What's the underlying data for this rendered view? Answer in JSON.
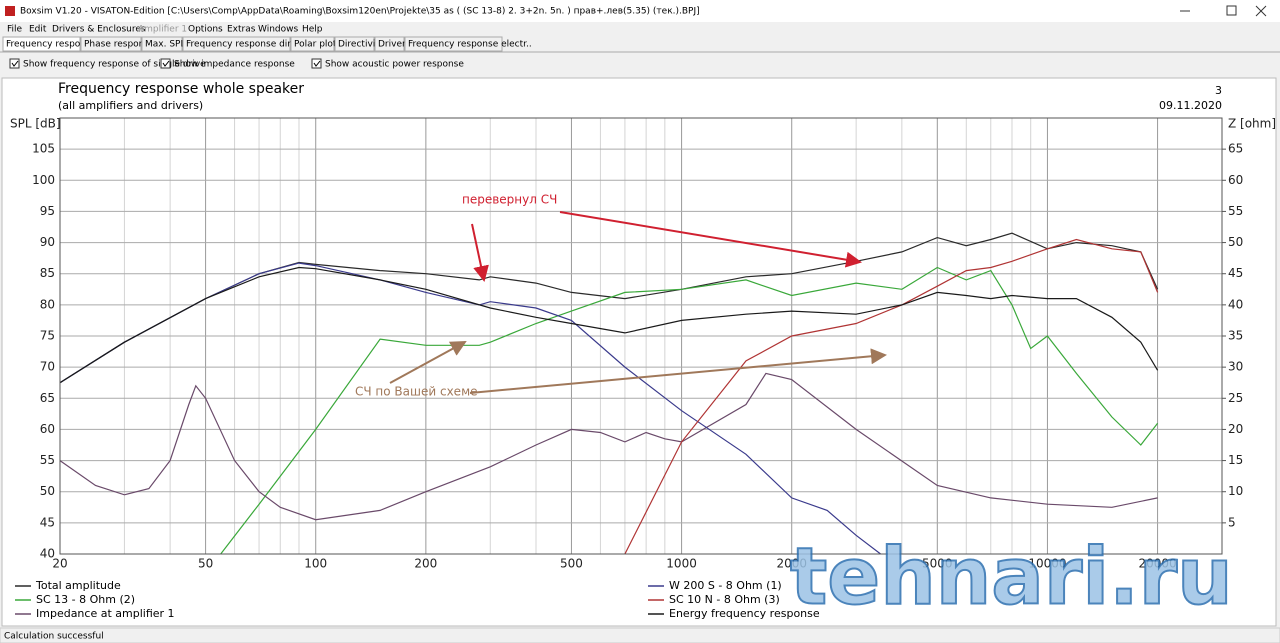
{
  "window": {
    "title": "Boxsim V1.20 - VISATON-Edition [C:\\Users\\Comp\\AppData\\Roaming\\Boxsim120en\\Projekte\\35 as (  (SC 13-8)  2. 3+2n. 5n. )  прав+.лев(5.35) (тек.).BPJ]"
  },
  "menu": [
    "File",
    "Edit",
    "Drivers & Enclosures",
    "Amplifier 1",
    "Options",
    "Extras",
    "Windows",
    "Help"
  ],
  "tabs": [
    "Frequency response",
    "Phase response",
    "Max. SPL",
    "Frequency response directions",
    "Polar plots",
    "Directivity",
    "Driver",
    "Frequency response electr.."
  ],
  "options": [
    "Show frequency response of single drive",
    "Show impedance response",
    "Show acoustic power response"
  ],
  "chart_data": {
    "type": "line",
    "title": "Frequency response whole speaker",
    "subtitle": "(all amplifiers and drivers)",
    "page_number": "3",
    "date": "09.11.2020",
    "y_label": "SPL [dB]",
    "y2_label": "Z [ohm]",
    "log_x": true,
    "grid": true,
    "xlim": [
      20,
      30000
    ],
    "xticks": [
      20,
      50,
      100,
      200,
      500,
      1000,
      2000,
      5000,
      10000,
      20000
    ],
    "x_minor_grid": [
      30,
      40,
      60,
      70,
      80,
      90,
      300,
      400,
      600,
      700,
      800,
      900,
      3000,
      4000,
      6000,
      7000,
      8000,
      9000
    ],
    "ylim": [
      40,
      110
    ],
    "yticks": [
      40,
      45,
      50,
      55,
      60,
      65,
      70,
      75,
      80,
      85,
      90,
      95,
      100,
      105
    ],
    "y2lim": [
      0,
      70
    ],
    "y2ticks": [
      5,
      10,
      15,
      20,
      25,
      30,
      35,
      40,
      45,
      50,
      55,
      60,
      65
    ],
    "series": [
      {
        "name": "Total amplitude",
        "color": "#2a2a2a",
        "x": [
          20,
          30,
          50,
          70,
          90,
          100,
          150,
          200,
          280,
          300,
          400,
          500,
          700,
          1000,
          1500,
          2000,
          3000,
          4000,
          5000,
          6000,
          7000,
          8000,
          10000,
          12000,
          15000,
          18000,
          20000
        ],
        "values": [
          67.5,
          74,
          81,
          85,
          86.8,
          86.5,
          85.5,
          85,
          84,
          84.5,
          83.5,
          82,
          81,
          82.5,
          84.5,
          85,
          87,
          88.5,
          90.8,
          89.5,
          90.5,
          91.5,
          89,
          90,
          89.5,
          88.5,
          82.5
        ]
      },
      {
        "name": "SC 13 - 8 Ohm (2)",
        "color": "#3aa83a",
        "x": [
          55,
          70,
          100,
          150,
          200,
          280,
          300,
          400,
          500,
          700,
          1000,
          1500,
          2000,
          3000,
          4000,
          5000,
          6000,
          7000,
          8000,
          9000,
          10000,
          12000,
          15000,
          18000,
          20000
        ],
        "values": [
          40,
          48,
          60,
          74.5,
          73.5,
          73.5,
          74,
          77,
          79,
          82,
          82.5,
          84,
          81.5,
          83.5,
          82.5,
          86,
          84,
          85.5,
          80,
          73,
          75,
          69,
          62,
          57.5,
          61
        ]
      },
      {
        "name": "Impedance at amplifier 1",
        "color": "#6a4a6a",
        "axis": "y2",
        "x": [
          20,
          25,
          30,
          35,
          40,
          45,
          47,
          50,
          60,
          70,
          80,
          100,
          150,
          200,
          300,
          400,
          500,
          600,
          700,
          800,
          900,
          1000,
          1500,
          1700,
          2000,
          3000,
          5000,
          7000,
          10000,
          15000,
          20000
        ],
        "values": [
          15,
          11,
          9.5,
          10.5,
          15,
          24,
          27,
          25,
          15,
          10,
          7.5,
          5.5,
          7,
          10,
          14,
          17.5,
          20,
          19.5,
          18,
          19.5,
          18.5,
          18,
          24,
          29,
          28,
          20,
          11,
          9,
          8,
          7.5,
          9
        ]
      },
      {
        "name": "W 200 S - 8 Ohm (1)",
        "color": "#3a3a8c",
        "x": [
          20,
          30,
          50,
          70,
          90,
          100,
          150,
          200,
          280,
          300,
          400,
          500,
          700,
          1000,
          1500,
          2000,
          2500,
          3000,
          3500
        ],
        "values": [
          67.5,
          74,
          81,
          85,
          86.7,
          86.3,
          84,
          82,
          80,
          80.5,
          79.5,
          77.5,
          70,
          63,
          56,
          49,
          47,
          43,
          40
        ]
      },
      {
        "name": "SC 10 N - 8 Ohm (3)",
        "color": "#b03434",
        "x": [
          700,
          1000,
          1500,
          2000,
          3000,
          4000,
          5000,
          6000,
          7000,
          8000,
          10000,
          12000,
          15000,
          18000,
          20000
        ],
        "values": [
          40,
          58,
          71,
          75,
          77,
          80,
          83,
          85.5,
          86,
          87,
          89,
          90.5,
          89,
          88.5,
          82
        ]
      },
      {
        "name": "Energy frequency response",
        "color": "#1a1a1a",
        "x": [
          20,
          30,
          50,
          70,
          90,
          100,
          150,
          200,
          300,
          400,
          500,
          700,
          1000,
          1500,
          2000,
          3000,
          4000,
          5000,
          6000,
          7000,
          8000,
          10000,
          12000,
          15000,
          18000,
          20000
        ],
        "values": [
          67.5,
          74,
          81,
          84.5,
          86,
          85.8,
          84,
          82.5,
          79.5,
          78,
          77,
          75.5,
          77.5,
          78.5,
          79,
          78.5,
          80,
          82,
          81.5,
          81,
          81.5,
          81,
          81,
          78,
          74,
          69.5
        ]
      }
    ],
    "annotations": [
      "перевернул СЧ",
      "СЧ по Вашей схеме"
    ]
  },
  "watermark": "tehnari.ru",
  "status": "Calculation successful"
}
